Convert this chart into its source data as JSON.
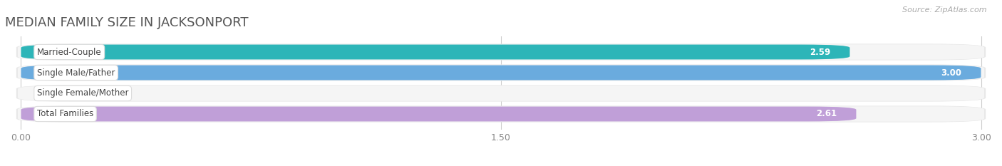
{
  "title": "MEDIAN FAMILY SIZE IN JACKSONPORT",
  "source": "Source: ZipAtlas.com",
  "categories": [
    "Married-Couple",
    "Single Male/Father",
    "Single Female/Mother",
    "Total Families"
  ],
  "values": [
    2.59,
    3.0,
    0.0,
    2.61
  ],
  "bar_colors": [
    "#2db5b8",
    "#6aabde",
    "#f4a0b0",
    "#c09fd8"
  ],
  "xlim": [
    0,
    3.0
  ],
  "xticks": [
    0.0,
    1.5,
    3.0
  ],
  "figsize": [
    14.06,
    2.33
  ],
  "dpi": 100,
  "bar_height": 0.72,
  "title_fontsize": 13,
  "label_fontsize": 8.5,
  "value_fontsize": 8.5,
  "tick_fontsize": 9,
  "source_fontsize": 8
}
